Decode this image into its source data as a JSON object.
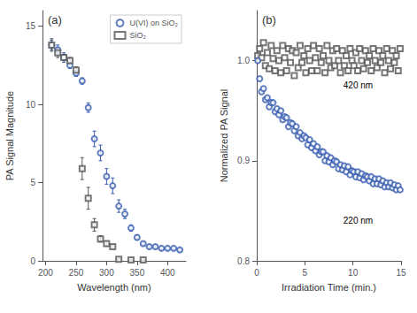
{
  "chart_data": [
    {
      "type": "scatter",
      "title": "(a)",
      "xlabel": "Wavelength (nm)",
      "ylabel": "PA Signal Magnitude",
      "xlim": [
        195,
        430
      ],
      "xticks": [
        200,
        250,
        300,
        350,
        400
      ],
      "ylim": [
        0,
        16
      ],
      "yticks": [
        0,
        5,
        10,
        15
      ],
      "grid": false,
      "legend": "upper right",
      "series": [
        {
          "name": "U(VI) on SiO₂",
          "color": "#3a5eb0",
          "marker": "circle",
          "x": [
            210,
            220,
            230,
            240,
            250,
            260,
            270,
            280,
            290,
            300,
            310,
            320,
            330,
            340,
            350,
            360,
            370,
            380,
            390,
            400,
            410,
            420
          ],
          "values": [
            13.8,
            13.5,
            13.0,
            12.5,
            12.0,
            11.5,
            9.8,
            7.8,
            6.9,
            5.4,
            4.8,
            3.5,
            3.0,
            2.1,
            1.5,
            1.1,
            0.9,
            0.9,
            0.8,
            0.8,
            0.8,
            0.7
          ],
          "yerr": [
            0.3,
            0.3,
            0.3,
            0.2,
            0.2,
            0.2,
            0.3,
            0.5,
            0.5,
            0.5,
            0.5,
            0.4,
            0.3,
            0.2,
            0.15,
            0.1,
            0.1,
            0.1,
            0.1,
            0.1,
            0.1,
            0.1
          ]
        },
        {
          "name": "SiO₂",
          "color": "#555555",
          "marker": "square",
          "x": [
            210,
            220,
            230,
            240,
            250,
            260,
            270,
            280,
            290,
            300,
            310,
            320,
            340,
            360
          ],
          "values": [
            13.8,
            13.3,
            13.0,
            12.8,
            12.2,
            5.9,
            4.0,
            2.3,
            1.4,
            1.1,
            0.9,
            0.1,
            0.05,
            0.05
          ],
          "yerr": [
            0.4,
            0.3,
            0.2,
            0.2,
            0.2,
            0.7,
            0.7,
            0.4,
            0.2,
            0.15,
            0.1,
            0.05,
            0.02,
            0.02
          ]
        }
      ]
    },
    {
      "type": "scatter",
      "title": "(b)",
      "xlabel": "Irradiation Time (min.)",
      "ylabel": "Normalized PA Signal",
      "xlim": [
        0,
        15
      ],
      "xticks": [
        0,
        5,
        10,
        15
      ],
      "ylim": [
        0.8,
        1.05
      ],
      "yticks": [
        0.8,
        0.9,
        {
          "value": 1.0,
          "label": "1.0"
        }
      ],
      "grid": false,
      "annotations": [
        "420 nm",
        "220 nm"
      ],
      "series": [
        {
          "color": "#555555",
          "marker": "square",
          "x": [
            0.1,
            0.3,
            0.5,
            0.7,
            0.9,
            1.1,
            1.3,
            1.5,
            1.7,
            1.9,
            2.1,
            2.3,
            2.5,
            2.7,
            2.9,
            3.1,
            3.3,
            3.5,
            3.7,
            3.9,
            4.1,
            4.3,
            4.5,
            4.7,
            4.9,
            5.1,
            5.3,
            5.5,
            5.7,
            5.9,
            6.1,
            6.3,
            6.5,
            6.7,
            6.9,
            7.1,
            7.3,
            7.5,
            7.7,
            7.9,
            8.1,
            8.3,
            8.5,
            8.7,
            8.9,
            9.1,
            9.3,
            9.5,
            9.7,
            9.9,
            10.1,
            10.3,
            10.5,
            10.7,
            10.9,
            11.1,
            11.3,
            11.5,
            11.7,
            11.9,
            12.1,
            12.3,
            12.5,
            12.7,
            12.9,
            13.1,
            13.3,
            13.5,
            13.7,
            13.9,
            14.1,
            14.3,
            14.5,
            14.7,
            14.9
          ],
          "values": [
            1.005,
            1.012,
            1.003,
            1.018,
            0.995,
            1.008,
            0.992,
            1.015,
            1.002,
            0.99,
            1.01,
            1.0,
            0.988,
            1.015,
            1.003,
            0.99,
            1.012,
            0.998,
            1.01,
            0.985,
            1.008,
            0.993,
            1.015,
            0.998,
            1.005,
            0.988,
            1.012,
            1.0,
            0.99,
            1.015,
            1.003,
            0.99,
            1.012,
            0.998,
            1.005,
            0.988,
            1.015,
            1.0,
            0.993,
            1.01,
            0.995,
            1.012,
            1.0,
            0.988,
            1.01,
            0.995,
            1.005,
            0.99,
            1.012,
            1.0,
            0.995,
            1.008,
            0.99,
            1.012,
            1.0,
            0.992,
            1.01,
            0.998,
            1.005,
            0.99,
            1.012,
            1.0,
            0.993,
            1.01,
            0.998,
            1.005,
            0.988,
            1.012,
            1.0,
            0.992,
            1.01,
            0.998,
            1.005,
            0.99,
            1.012
          ]
        },
        {
          "color": "#3a5eb0",
          "marker": "circle",
          "x": [
            0.1,
            0.3,
            0.5,
            0.7,
            0.9,
            1.1,
            1.3,
            1.5,
            1.7,
            1.9,
            2.1,
            2.3,
            2.5,
            2.7,
            2.9,
            3.1,
            3.3,
            3.5,
            3.7,
            3.9,
            4.1,
            4.3,
            4.5,
            4.7,
            4.9,
            5.1,
            5.3,
            5.5,
            5.7,
            5.9,
            6.1,
            6.3,
            6.5,
            6.7,
            6.9,
            7.1,
            7.3,
            7.5,
            7.7,
            7.9,
            8.1,
            8.3,
            8.5,
            8.7,
            8.9,
            9.1,
            9.3,
            9.5,
            9.7,
            9.9,
            10.1,
            10.3,
            10.5,
            10.7,
            10.9,
            11.1,
            11.3,
            11.5,
            11.7,
            11.9,
            12.1,
            12.3,
            12.5,
            12.7,
            12.9,
            13.1,
            13.3,
            13.5,
            13.7,
            13.9,
            14.1,
            14.3,
            14.5,
            14.7,
            14.9
          ],
          "values": [
            1.0,
            0.982,
            0.969,
            0.972,
            0.961,
            0.963,
            0.954,
            0.958,
            0.958,
            0.949,
            0.952,
            0.946,
            0.95,
            0.941,
            0.944,
            0.943,
            0.934,
            0.938,
            0.937,
            0.93,
            0.934,
            0.925,
            0.928,
            0.922,
            0.925,
            0.923,
            0.916,
            0.921,
            0.913,
            0.917,
            0.91,
            0.914,
            0.906,
            0.909,
            0.909,
            0.9,
            0.905,
            0.899,
            0.903,
            0.896,
            0.9,
            0.899,
            0.892,
            0.896,
            0.891,
            0.895,
            0.889,
            0.894,
            0.886,
            0.89,
            0.889,
            0.884,
            0.889,
            0.883,
            0.887,
            0.881,
            0.885,
            0.884,
            0.88,
            0.884,
            0.877,
            0.882,
            0.877,
            0.882,
            0.876,
            0.88,
            0.874,
            0.878,
            0.874,
            0.878,
            0.873,
            0.876,
            0.871,
            0.875,
            0.871
          ]
        }
      ]
    }
  ]
}
